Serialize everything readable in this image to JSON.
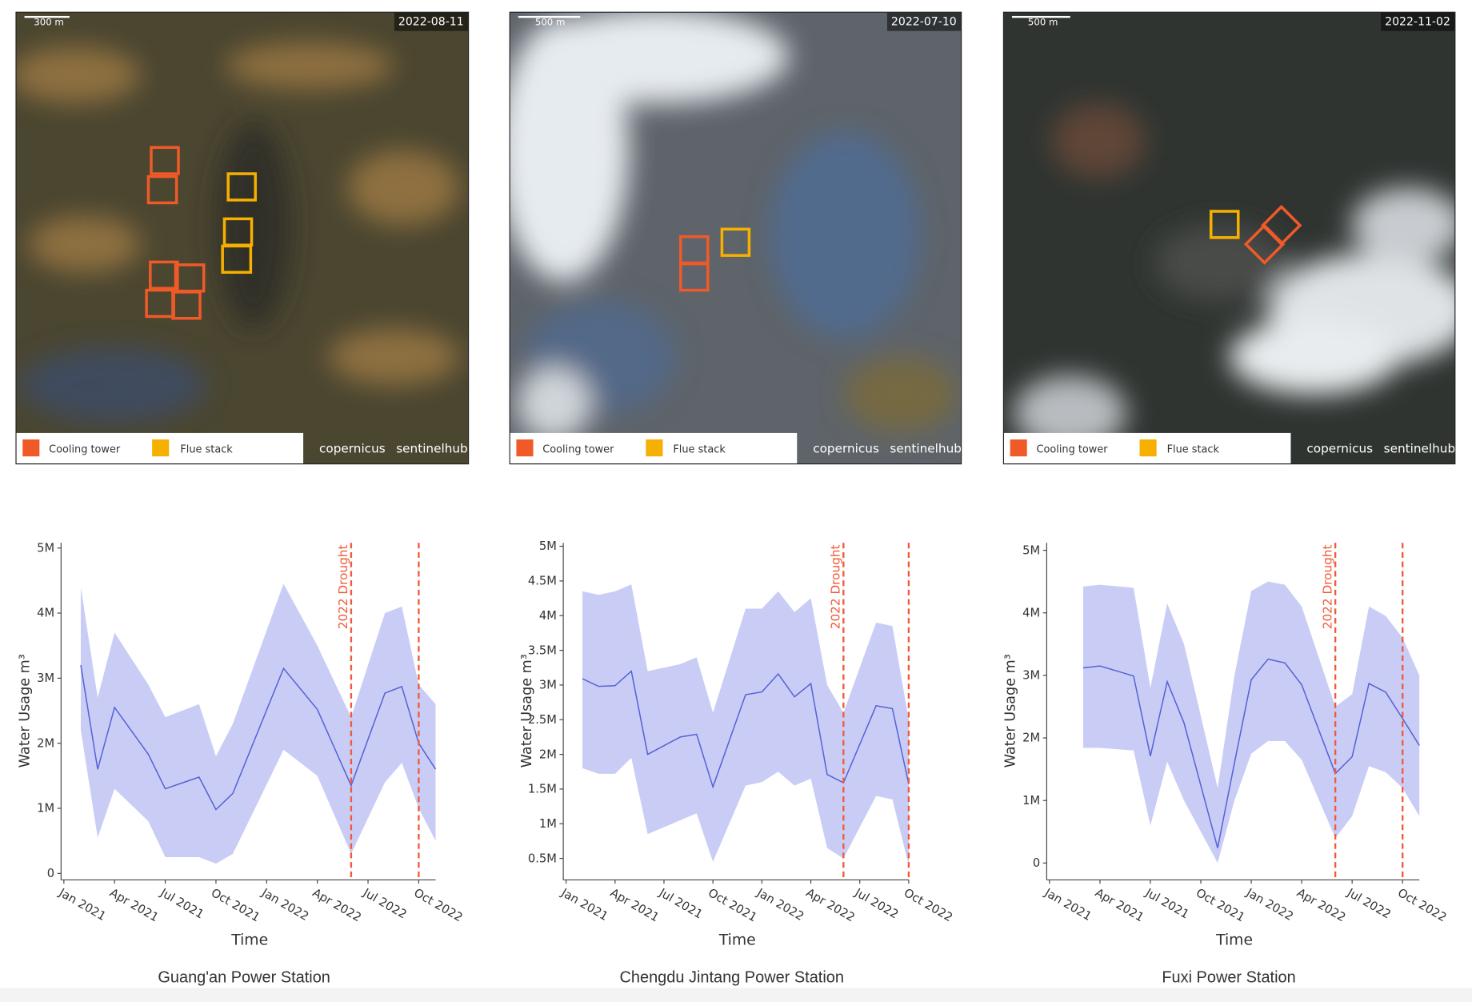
{
  "images": [
    {
      "scale": "300 m",
      "date": "2022-08-11",
      "legend": [
        "Cooling tower",
        "Flue stack"
      ],
      "credits": [
        "copernicus",
        "sentinelhub"
      ]
    },
    {
      "scale": "500 m",
      "date": "2022-07-10",
      "legend": [
        "Cooling tower",
        "Flue stack"
      ],
      "credits": [
        "copernicus",
        "sentinelhub"
      ]
    },
    {
      "scale": "500 m",
      "date": "2022-11-02",
      "legend": [
        "Cooling tower",
        "Flue stack"
      ],
      "credits": [
        "copernicus",
        "sentinelhub"
      ]
    }
  ],
  "chart_data": [
    {
      "type": "line",
      "caption": "Guang'an Power Station",
      "x_label": "Time",
      "y_label": "Water Usage m³",
      "x": [
        "2021-02",
        "2021-03",
        "2021-04",
        "2021-06",
        "2021-07",
        "2021-09",
        "2021-10",
        "2021-11",
        "2022-02",
        "2022-04",
        "2022-06",
        "2022-08",
        "2022-09",
        "2022-10",
        "2022-11"
      ],
      "series": [
        {
          "color": "#5563d6",
          "band_color": "#c9cdf6",
          "values": [
            3200000,
            1600000,
            2550000,
            1830000,
            1300000,
            1480000,
            980000,
            1230000,
            3150000,
            2520000,
            1350000,
            2770000,
            2870000,
            2000000,
            1600000
          ],
          "upper": [
            4400000,
            2700000,
            3700000,
            2900000,
            2400000,
            2600000,
            1800000,
            2300000,
            4450000,
            3500000,
            2400000,
            4000000,
            4100000,
            2900000,
            2600000
          ],
          "lower": [
            2200000,
            550000,
            1300000,
            800000,
            250000,
            250000,
            150000,
            300000,
            1900000,
            1500000,
            300000,
            1400000,
            1700000,
            1000000,
            500000
          ]
        }
      ],
      "xlim": [
        "2021-01",
        "2022-11"
      ],
      "xticks": [
        {
          "value": "2021-01",
          "label": "Jan 2021"
        },
        {
          "value": "2021-04",
          "label": "Apr 2021"
        },
        {
          "value": "2021-07",
          "label": "Jul 2021"
        },
        {
          "value": "2021-10",
          "label": "Oct 2021"
        },
        {
          "value": "2022-01",
          "label": "Jan 2022"
        },
        {
          "value": "2022-04",
          "label": "Apr 2022"
        },
        {
          "value": "2022-07",
          "label": "Jul 2022"
        },
        {
          "value": "2022-10",
          "label": "Oct 2022"
        }
      ],
      "ylim": [
        -100000,
        5080000
      ],
      "yticks": [
        0,
        {
          "value": 1000000,
          "label": "1M"
        },
        {
          "value": 2000000,
          "label": "2M"
        },
        {
          "value": 3000000,
          "label": "3M"
        },
        {
          "value": 4000000,
          "label": "4M"
        },
        {
          "value": 5000000,
          "label": "5M"
        }
      ],
      "vlines": [
        {
          "x": "2022-06",
          "label": "2022 Drought"
        },
        {
          "x": "2022-10"
        }
      ],
      "vline_color": "#f05a3a"
    },
    {
      "type": "line",
      "caption": "Chengdu Jintang Power Station",
      "x_label": "Time",
      "y_label": "Water Usage m³",
      "x": [
        "2021-02",
        "2021-03",
        "2021-04",
        "2021-05",
        "2021-06",
        "2021-08",
        "2021-09",
        "2021-10",
        "2021-12",
        "2022-01",
        "2022-02",
        "2022-03",
        "2022-04",
        "2022-05",
        "2022-06",
        "2022-08",
        "2022-09",
        "2022-10"
      ],
      "series": [
        {
          "color": "#5563d6",
          "band_color": "#c9cdf6",
          "values": [
            3090000,
            2980000,
            2990000,
            3200000,
            2000000,
            2250000,
            2290000,
            1530000,
            2860000,
            2900000,
            3160000,
            2830000,
            3020000,
            1710000,
            1590000,
            2700000,
            2660000,
            1570000
          ],
          "upper": [
            4350000,
            4300000,
            4350000,
            4450000,
            3200000,
            3300000,
            3400000,
            2600000,
            4100000,
            4100000,
            4350000,
            4050000,
            4250000,
            3000000,
            2600000,
            3900000,
            3850000,
            2500000
          ],
          "lower": [
            1800000,
            1720000,
            1720000,
            1950000,
            850000,
            1050000,
            1150000,
            450000,
            1550000,
            1600000,
            1750000,
            1550000,
            1650000,
            650000,
            500000,
            1400000,
            1350000,
            400000
          ]
        }
      ],
      "xlim": [
        "2021-01",
        "2022-10"
      ],
      "xticks": [
        {
          "value": "2021-01",
          "label": "Jan 2021"
        },
        {
          "value": "2021-04",
          "label": "Apr 2021"
        },
        {
          "value": "2021-07",
          "label": "Jul 2021"
        },
        {
          "value": "2021-10",
          "label": "Oct 2021"
        },
        {
          "value": "2022-01",
          "label": "Jan 2022"
        },
        {
          "value": "2022-04",
          "label": "Apr 2022"
        },
        {
          "value": "2022-07",
          "label": "Jul 2022"
        },
        {
          "value": "2022-10",
          "label": "Oct 2022"
        }
      ],
      "ylim": [
        190000,
        5050000
      ],
      "yticks": [
        {
          "value": 500000,
          "label": "0.5M"
        },
        {
          "value": 1000000,
          "label": "1M"
        },
        {
          "value": 1500000,
          "label": "1.5M"
        },
        {
          "value": 2000000,
          "label": "2M"
        },
        {
          "value": 2500000,
          "label": "2.5M"
        },
        {
          "value": 3000000,
          "label": "3M"
        },
        {
          "value": 3500000,
          "label": "3.5M"
        },
        {
          "value": 4000000,
          "label": "4M"
        },
        {
          "value": 4500000,
          "label": "4.5M"
        },
        {
          "value": 5000000,
          "label": "5M"
        }
      ],
      "vlines": [
        {
          "x": "2022-06",
          "label": "2022 Drought"
        },
        {
          "x": "2022-10"
        }
      ],
      "vline_color": "#f05a3a"
    },
    {
      "type": "line",
      "caption": "Fuxi Power Station",
      "x_label": "Time",
      "y_label": "Water Usage m³",
      "x": [
        "2021-03",
        "2021-04",
        "2021-06",
        "2021-07",
        "2021-08",
        "2021-09",
        "2021-11",
        "2021-12",
        "2022-01",
        "2022-02",
        "2022-03",
        "2022-04",
        "2022-06",
        "2022-07",
        "2022-08",
        "2022-09",
        "2022-10",
        "2022-11"
      ],
      "series": [
        {
          "color": "#5563d6",
          "band_color": "#c9cdf6",
          "values": [
            3120000,
            3150000,
            2990000,
            1710000,
            2900000,
            2240000,
            240000,
            1600000,
            2930000,
            3260000,
            3200000,
            2850000,
            1430000,
            1700000,
            2870000,
            2730000,
            2310000,
            1880000
          ],
          "upper": [
            4420000,
            4450000,
            4400000,
            2800000,
            4150000,
            3500000,
            1200000,
            3000000,
            4350000,
            4500000,
            4450000,
            4100000,
            2500000,
            2700000,
            4100000,
            3950000,
            3600000,
            3000000
          ],
          "lower": [
            1840000,
            1840000,
            1800000,
            600000,
            1620000,
            1000000,
            0,
            1000000,
            1750000,
            1950000,
            1950000,
            1650000,
            400000,
            750000,
            1550000,
            1450000,
            1200000,
            750000
          ]
        }
      ],
      "xlim": [
        "2021-01",
        "2022-11"
      ],
      "xticks": [
        {
          "value": "2021-01",
          "label": "Jan 2021"
        },
        {
          "value": "2021-04",
          "label": "Apr 2021"
        },
        {
          "value": "2021-07",
          "label": "Jul 2021"
        },
        {
          "value": "2021-10",
          "label": "Oct 2021"
        },
        {
          "value": "2022-01",
          "label": "Jan 2022"
        },
        {
          "value": "2022-04",
          "label": "Apr 2022"
        },
        {
          "value": "2022-07",
          "label": "Jul 2022"
        },
        {
          "value": "2022-10",
          "label": "Oct 2022"
        }
      ],
      "ylim": [
        -270000,
        5120000
      ],
      "yticks": [
        0,
        {
          "value": 1000000,
          "label": "1M"
        },
        {
          "value": 2000000,
          "label": "2M"
        },
        {
          "value": 3000000,
          "label": "3M"
        },
        {
          "value": 4000000,
          "label": "4M"
        },
        {
          "value": 5000000,
          "label": "5M"
        }
      ],
      "vlines": [
        {
          "x": "2022-06",
          "label": "2022 Drought"
        },
        {
          "x": "2022-10"
        }
      ],
      "vline_color": "#f05a3a"
    }
  ]
}
